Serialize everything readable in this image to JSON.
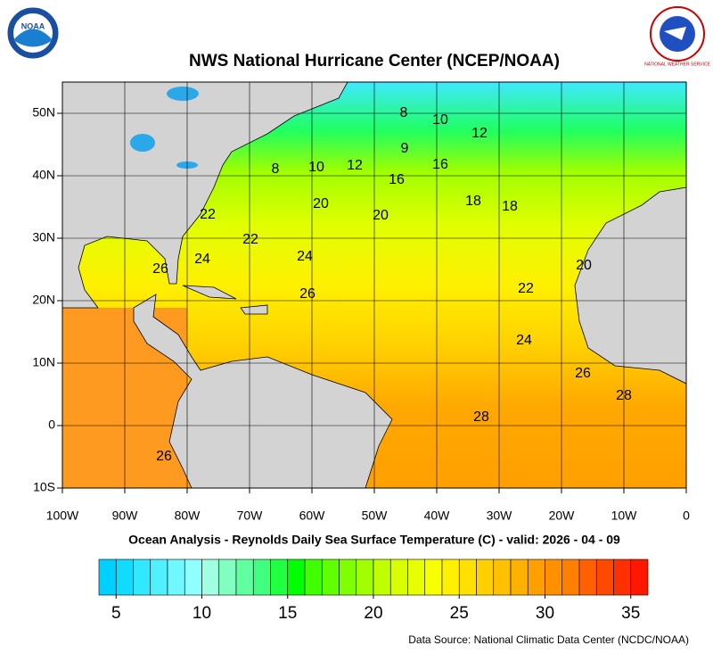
{
  "header": {
    "title": "NWS National Hurricane Center (NCEP/NOAA)",
    "noaa_logo": "NOAA",
    "nws_logo": "NATIONAL WEATHER SERVICE"
  },
  "map": {
    "lon_lim": [
      -100,
      0
    ],
    "lat_lim": [
      -10,
      55
    ],
    "lon_ticks": [
      {
        "value": -100,
        "label": "100W"
      },
      {
        "value": -90,
        "label": "90W"
      },
      {
        "value": -80,
        "label": "80W"
      },
      {
        "value": -70,
        "label": "70W"
      },
      {
        "value": -60,
        "label": "60W"
      },
      {
        "value": -50,
        "label": "50W"
      },
      {
        "value": -40,
        "label": "40W"
      },
      {
        "value": -30,
        "label": "30W"
      },
      {
        "value": -20,
        "label": "20W"
      },
      {
        "value": -10,
        "label": "10W"
      },
      0
    ],
    "lat_ticks": [
      {
        "value": 50,
        "label": "50N"
      },
      {
        "value": 40,
        "label": "40N"
      },
      {
        "value": 30,
        "label": "30N"
      },
      {
        "value": 20,
        "label": "20N"
      },
      {
        "value": 10,
        "label": "10N"
      },
      0,
      {
        "value": -10,
        "label": "10S"
      }
    ],
    "contour_labels": [
      8,
      10,
      12,
      9,
      16,
      8,
      10,
      12,
      16,
      18,
      18,
      20,
      20,
      22,
      22,
      24,
      24,
      26,
      20,
      26,
      22,
      24,
      26,
      28,
      28,
      26
    ]
  },
  "subtitle": "Ocean Analysis - Reynolds Daily Sea Surface Temperature (C) - valid: 2026 - 04 - 09",
  "colorbar": {
    "range": [
      4,
      36
    ],
    "ticks": [
      5,
      10,
      15,
      20,
      25,
      30,
      35
    ],
    "colors": [
      "#00d0ff",
      "#10dcff",
      "#30e8ff",
      "#50f0ff",
      "#70f8ff",
      "#90ffff",
      "#a0ffe0",
      "#80ffc0",
      "#60ffa0",
      "#40ff80",
      "#20ff40",
      "#00ff00",
      "#40ff00",
      "#60ff00",
      "#80ff00",
      "#a0ff00",
      "#c0ff00",
      "#d8ff00",
      "#e8ff00",
      "#f8ff00",
      "#fff000",
      "#ffe000",
      "#ffd000",
      "#ffc000",
      "#ffb000",
      "#ffa000",
      "#ff9000",
      "#ff8000",
      "#ff6000",
      "#ff4800",
      "#ff3000",
      "#ff1800"
    ]
  },
  "source": "Data Source: National Climatic Data Center (NCDC/NOAA)"
}
